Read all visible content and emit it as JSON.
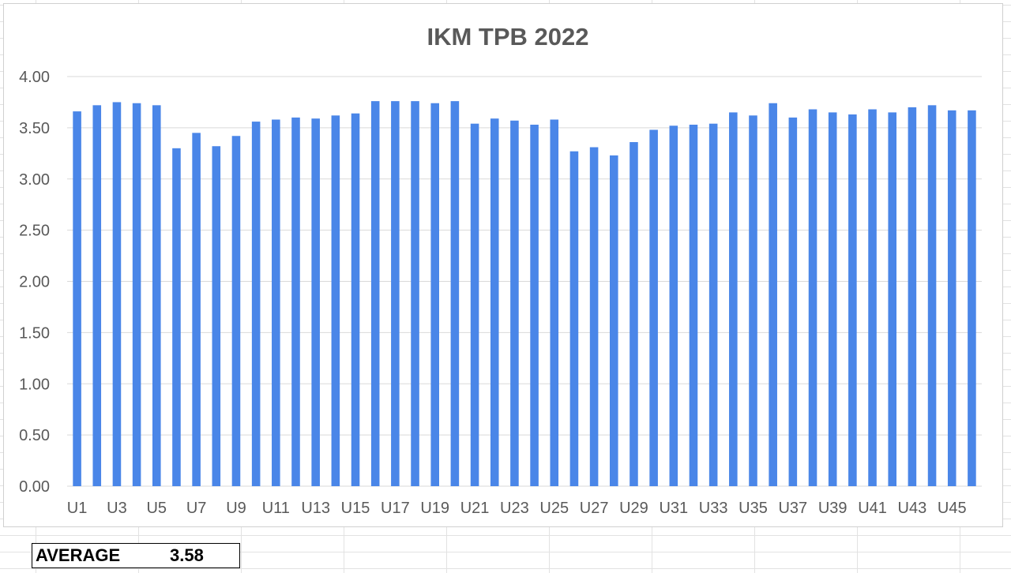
{
  "summary": {
    "label": "AVERAGE",
    "value": "3.58"
  },
  "colors": {
    "bar": "#4a86e8",
    "grid": "#d9d9d9",
    "text": "#595959",
    "title": "#595959"
  },
  "chart_data": {
    "type": "bar",
    "title": "IKM TPB 2022",
    "xlabel": "",
    "ylabel": "",
    "ylim": [
      0,
      4
    ],
    "yticks": [
      "0.00",
      "0.50",
      "1.00",
      "1.50",
      "2.00",
      "2.50",
      "3.00",
      "3.50",
      "4.00"
    ],
    "grid": true,
    "categories": [
      "U1",
      "U2",
      "U3",
      "U4",
      "U5",
      "U6",
      "U7",
      "U8",
      "U9",
      "U10",
      "U11",
      "U12",
      "U13",
      "U14",
      "U15",
      "U16",
      "U17",
      "U18",
      "U19",
      "U20",
      "U21",
      "U22",
      "U23",
      "U24",
      "U25",
      "U26",
      "U27",
      "U28",
      "U29",
      "U30",
      "U31",
      "U32",
      "U33",
      "U34",
      "U35",
      "U36",
      "U37",
      "U38",
      "U39",
      "U40",
      "U41",
      "U42",
      "U43",
      "U44",
      "U45",
      "U46"
    ],
    "tick_labels_shown": [
      "U1",
      "",
      "U3",
      "",
      "U5",
      "",
      "U7",
      "",
      "U9",
      "",
      "U11",
      "",
      "U13",
      "",
      "U15",
      "",
      "U17",
      "",
      "U19",
      "",
      "U21",
      "",
      "U23",
      "",
      "U25",
      "",
      "U27",
      "",
      "U29",
      "",
      "U31",
      "",
      "U33",
      "",
      "U35",
      "",
      "U37",
      "",
      "U39",
      "",
      "U41",
      "",
      "U43",
      "",
      "U45",
      ""
    ],
    "values": [
      3.66,
      3.72,
      3.75,
      3.74,
      3.72,
      3.3,
      3.45,
      3.32,
      3.42,
      3.56,
      3.58,
      3.6,
      3.59,
      3.62,
      3.64,
      3.76,
      3.76,
      3.76,
      3.74,
      3.76,
      3.54,
      3.59,
      3.57,
      3.53,
      3.58,
      3.27,
      3.31,
      3.23,
      3.36,
      3.48,
      3.52,
      3.53,
      3.54,
      3.65,
      3.62,
      3.74,
      3.6,
      3.68,
      3.65,
      3.63,
      3.68,
      3.65,
      3.7,
      3.72,
      3.67,
      3.67
    ]
  }
}
